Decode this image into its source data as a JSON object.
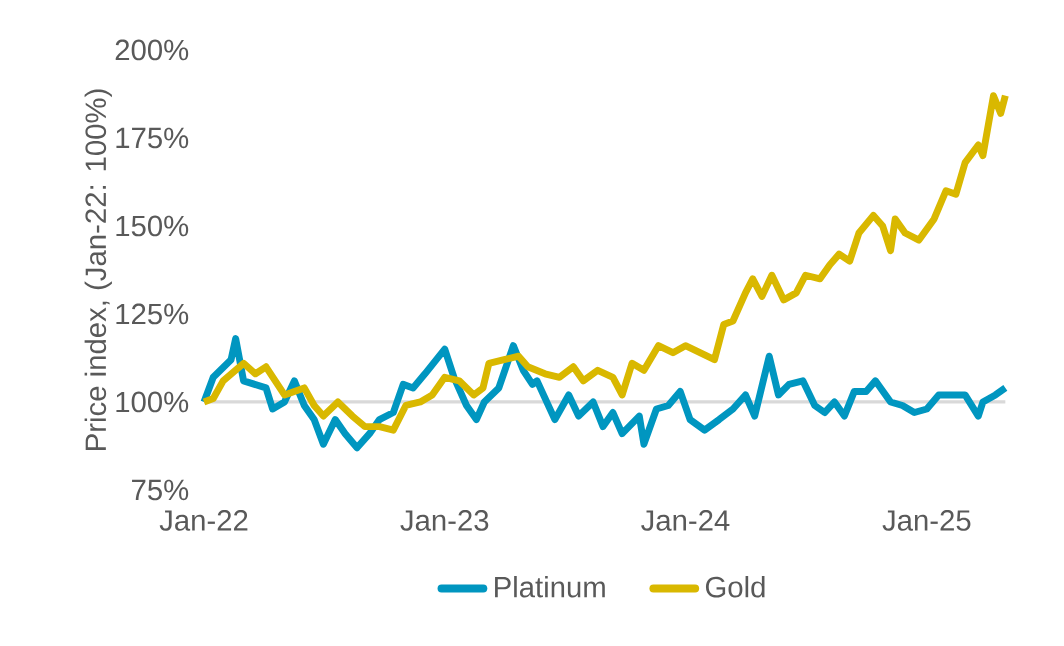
{
  "chart_data": {
    "type": "line",
    "ylabel": "Price index, (Jan-22: 100%)",
    "xlim": [
      "2022-01-01",
      "2025-04-30"
    ],
    "ylim": [
      75,
      200
    ],
    "xticks": [
      {
        "value": "2022-01-01",
        "label": "Jan-22"
      },
      {
        "value": "2023-01-01",
        "label": "Jan-23"
      },
      {
        "value": "2024-01-01",
        "label": "Jan-24"
      },
      {
        "value": "2025-01-01",
        "label": "Jan-25"
      }
    ],
    "yticks": [
      {
        "value": 75,
        "label": "75%"
      },
      {
        "value": 100,
        "label": "100%"
      },
      {
        "value": 125,
        "label": "125%"
      },
      {
        "value": 150,
        "label": "150%"
      },
      {
        "value": 175,
        "label": "175%"
      },
      {
        "value": 200,
        "label": "200%"
      }
    ],
    "grid": false,
    "legend": "bottom",
    "marker": "none",
    "line_style": "solid",
    "ref_lines": [
      {
        "axis": "y",
        "value": 100,
        "color": "#d9d9d9"
      }
    ],
    "series": [
      {
        "name": "Platinum",
        "color": "#0096c0",
        "x": [
          "2022-01-01",
          "2022-01-15",
          "2022-02-11",
          "2022-02-18",
          "2022-03-02",
          "2022-04-05",
          "2022-04-15",
          "2022-05-03",
          "2022-05-18",
          "2022-06-02",
          "2022-06-17",
          "2022-07-01",
          "2022-07-19",
          "2022-08-03",
          "2022-08-21",
          "2022-09-09",
          "2022-09-24",
          "2022-10-15",
          "2022-10-30",
          "2022-11-14",
          "2022-12-02",
          "2023-01-01",
          "2023-01-15",
          "2023-02-03",
          "2023-02-18",
          "2023-03-02",
          "2023-03-24",
          "2023-04-15",
          "2023-04-30",
          "2023-05-14",
          "2023-05-21",
          "2023-06-17",
          "2023-07-08",
          "2023-07-23",
          "2023-08-14",
          "2023-08-29",
          "2023-09-13",
          "2023-09-27",
          "2023-10-23",
          "2023-10-30",
          "2023-11-18",
          "2023-12-06",
          "2023-12-24",
          "2024-01-08",
          "2024-01-30",
          "2024-02-21",
          "2024-03-13",
          "2024-04-01",
          "2024-04-15",
          "2024-05-07",
          "2024-05-21",
          "2024-06-06",
          "2024-06-27",
          "2024-07-15",
          "2024-07-30",
          "2024-08-14",
          "2024-08-29",
          "2024-09-13",
          "2024-10-01",
          "2024-10-15",
          "2024-11-07",
          "2024-11-25",
          "2024-12-13",
          "2025-01-01",
          "2025-01-19",
          "2025-02-11",
          "2025-02-28",
          "2025-03-20",
          "2025-03-27",
          "2025-04-15",
          "2025-04-30"
        ],
        "values": [
          100,
          107,
          112,
          118,
          106,
          104,
          98,
          100,
          106,
          99,
          95,
          88,
          95,
          91,
          87,
          91,
          95,
          97,
          105,
          104,
          108,
          115,
          107,
          99,
          95,
          100,
          104,
          116,
          109,
          105,
          106,
          95,
          102,
          96,
          100,
          93,
          97,
          91,
          96,
          88,
          98,
          99,
          103,
          95,
          92,
          95,
          98,
          102,
          96,
          113,
          102,
          105,
          106,
          99,
          97,
          100,
          96,
          103,
          103,
          106,
          100,
          99,
          97,
          98,
          102,
          102,
          102,
          96,
          100,
          102,
          104
        ]
      },
      {
        "name": "Gold",
        "color": "#d9b800",
        "x": [
          "2022-01-01",
          "2022-01-15",
          "2022-01-30",
          "2022-03-02",
          "2022-03-20",
          "2022-04-05",
          "2022-04-26",
          "2022-05-03",
          "2022-06-02",
          "2022-06-17",
          "2022-07-01",
          "2022-07-23",
          "2022-08-14",
          "2022-09-02",
          "2022-09-24",
          "2022-10-15",
          "2022-11-03",
          "2022-11-25",
          "2022-12-13",
          "2023-01-01",
          "2023-01-23",
          "2023-02-14",
          "2023-02-28",
          "2023-03-09",
          "2023-04-01",
          "2023-04-23",
          "2023-05-07",
          "2023-06-02",
          "2023-06-24",
          "2023-07-15",
          "2023-07-30",
          "2023-08-21",
          "2023-09-13",
          "2023-09-27",
          "2023-10-12",
          "2023-10-30",
          "2023-11-21",
          "2023-12-13",
          "2024-01-01",
          "2024-01-23",
          "2024-02-14",
          "2024-02-28",
          "2024-03-13",
          "2024-04-01",
          "2024-04-12",
          "2024-04-26",
          "2024-05-11",
          "2024-05-29",
          "2024-06-17",
          "2024-07-01",
          "2024-07-23",
          "2024-08-07",
          "2024-08-21",
          "2024-09-06",
          "2024-09-20",
          "2024-10-12",
          "2024-10-26",
          "2024-11-07",
          "2024-11-14",
          "2024-11-29",
          "2024-12-20",
          "2025-01-12",
          "2025-01-30",
          "2025-02-14",
          "2025-02-28",
          "2025-03-20",
          "2025-03-27",
          "2025-04-12",
          "2025-04-23",
          "2025-04-30"
        ],
        "values": [
          100,
          101,
          106,
          111,
          108,
          110,
          104,
          102,
          104,
          99,
          96,
          100,
          96,
          93,
          93,
          92,
          99,
          100,
          102,
          107,
          106,
          102,
          104,
          111,
          112,
          113,
          110,
          108,
          107,
          110,
          106,
          109,
          107,
          102,
          111,
          109,
          116,
          114,
          116,
          114,
          112,
          122,
          123,
          131,
          135,
          130,
          136,
          129,
          131,
          136,
          135,
          139,
          142,
          140,
          148,
          153,
          150,
          143,
          152,
          148,
          146,
          152,
          160,
          159,
          168,
          173,
          170,
          187,
          182,
          187
        ]
      }
    ]
  }
}
